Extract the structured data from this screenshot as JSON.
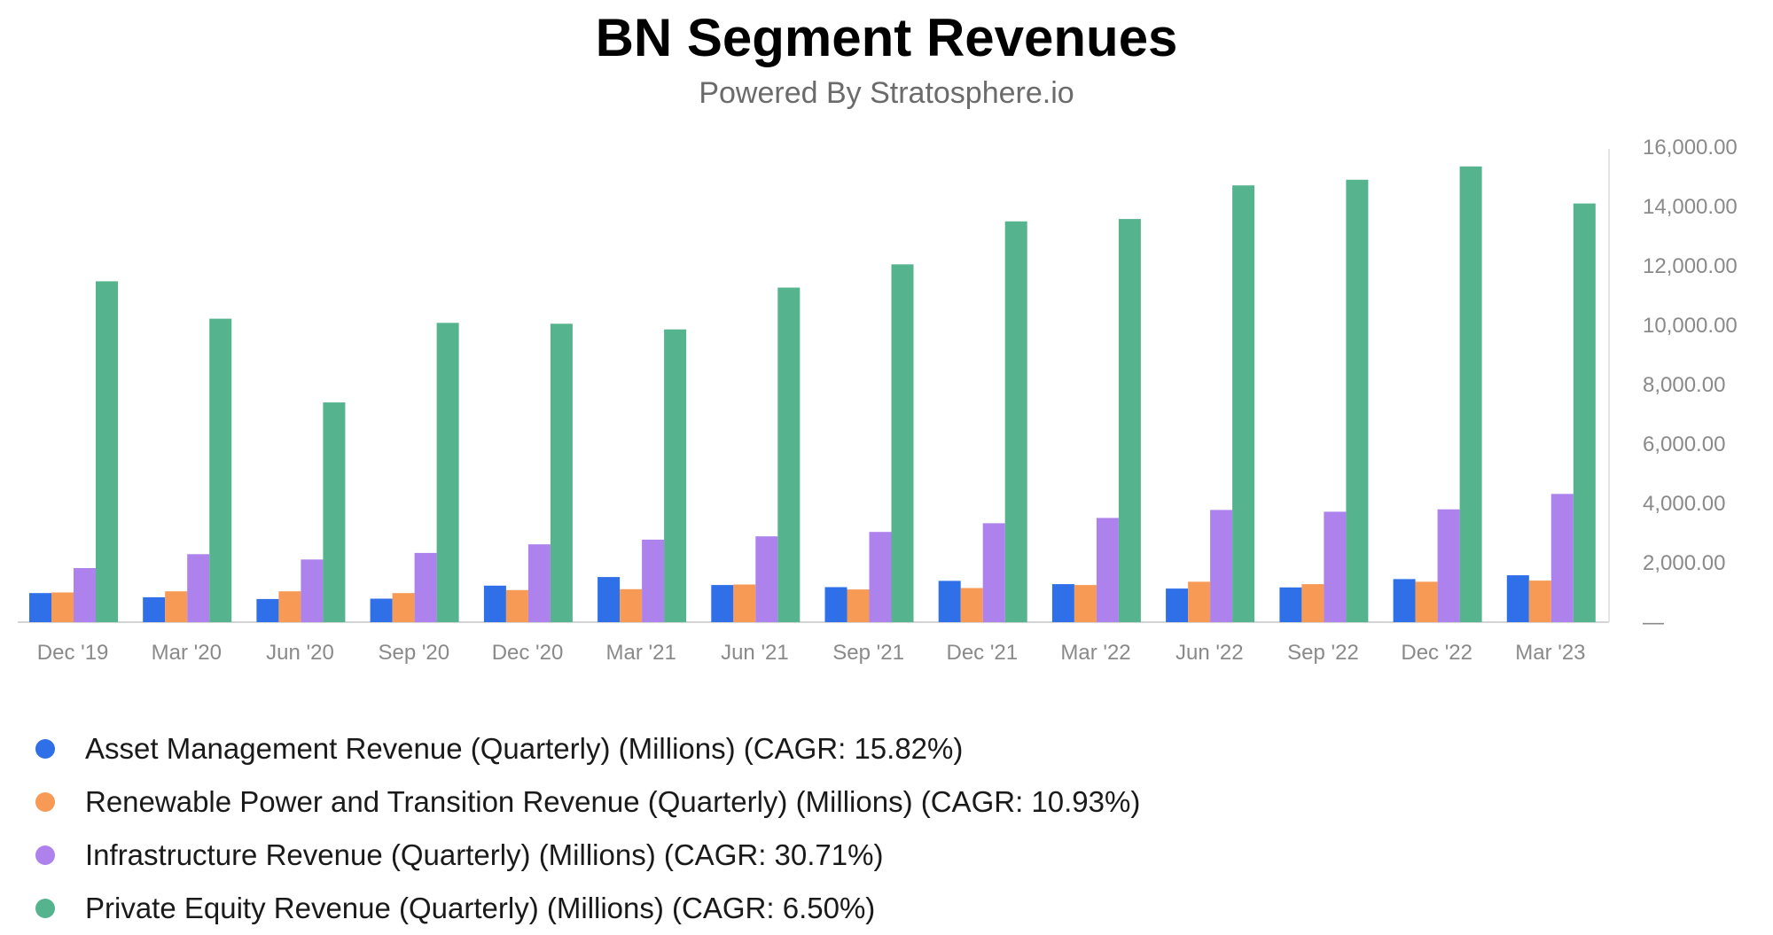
{
  "chart_data": {
    "type": "bar",
    "title": "BN Segment Revenues",
    "subtitle": "Powered By Stratosphere.io",
    "xlabel": "",
    "ylabel": "",
    "ylim": [
      0,
      16000
    ],
    "y_ticks": [
      "16,000.00",
      "14,000.00",
      "12,000.00",
      "10,000.00",
      "8,000.00",
      "6,000.00",
      "4,000.00",
      "2,000.00",
      "—"
    ],
    "y_tick_values": [
      16000,
      14000,
      12000,
      10000,
      8000,
      6000,
      4000,
      2000,
      0
    ],
    "y_axis_position": "right",
    "legend_position": "bottom-left",
    "categories": [
      "Dec '19",
      "Mar '20",
      "Jun '20",
      "Sep '20",
      "Dec '20",
      "Mar '21",
      "Jun '21",
      "Sep '21",
      "Dec '21",
      "Mar '22",
      "Jun '22",
      "Sep '22",
      "Dec '22",
      "Mar '23"
    ],
    "series": [
      {
        "name": "Asset Management Revenue (Quarterly) (Millions) (CAGR: 15.82%)",
        "color": "#2f6fe8",
        "values": [
          980,
          840,
          780,
          790,
          1230,
          1520,
          1250,
          1180,
          1390,
          1280,
          1130,
          1170,
          1450,
          1580
        ]
      },
      {
        "name": "Renewable Power and Transition Revenue (Quarterly) (Millions) (CAGR: 10.93%)",
        "color": "#f79a55",
        "values": [
          1000,
          1040,
          1040,
          980,
          1080,
          1110,
          1270,
          1100,
          1150,
          1250,
          1360,
          1280,
          1360,
          1400
        ]
      },
      {
        "name": "Infrastructure Revenue (Quarterly) (Millions) (CAGR: 30.71%)",
        "color": "#ad82ec",
        "values": [
          1820,
          2290,
          2110,
          2330,
          2620,
          2780,
          2890,
          3040,
          3330,
          3510,
          3780,
          3720,
          3800,
          4320
        ]
      },
      {
        "name": "Private Equity Revenue (Quarterly) (Millions) (CAGR: 6.50%)",
        "color": "#55b38e",
        "values": [
          11480,
          10220,
          7400,
          10080,
          10050,
          9860,
          11270,
          12050,
          13500,
          13580,
          14710,
          14900,
          15350,
          14100
        ]
      }
    ]
  }
}
